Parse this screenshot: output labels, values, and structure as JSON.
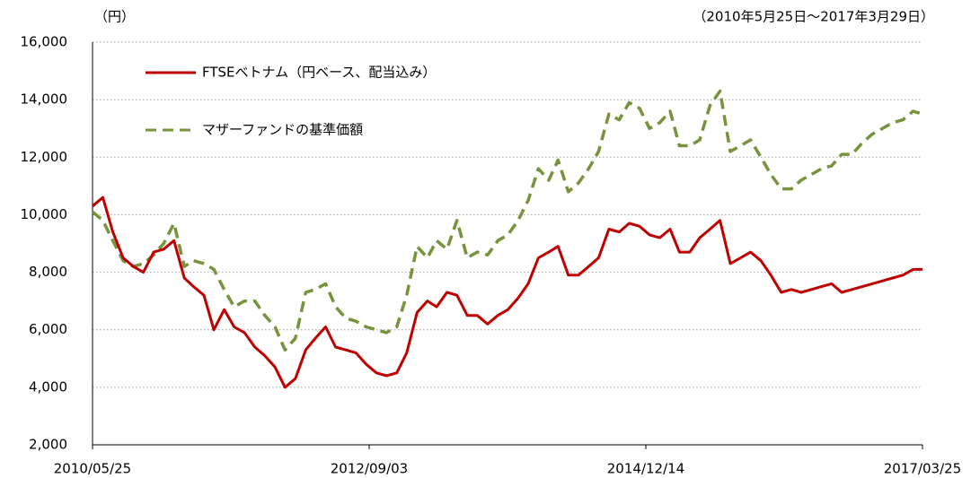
{
  "chart_data": {
    "type": "line",
    "title": "（円）",
    "subtitle": "（2010年5月25日～2017年3月29日）",
    "x": [
      "2010/05/25",
      "2010/06/25",
      "2010/07/25",
      "2010/08/25",
      "2010/09/25",
      "2010/10/25",
      "2010/11/25",
      "2010/12/25",
      "2011/01/25",
      "2011/02/25",
      "2011/03/25",
      "2011/04/25",
      "2011/05/25",
      "2011/06/25",
      "2011/07/25",
      "2011/08/25",
      "2011/09/25",
      "2011/10/25",
      "2011/11/25",
      "2011/12/25",
      "2012/01/25",
      "2012/02/25",
      "2012/03/25",
      "2012/04/25",
      "2012/05/25",
      "2012/06/25",
      "2012/07/25",
      "2012/08/25",
      "2012/09/25",
      "2012/10/25",
      "2012/11/25",
      "2012/12/25",
      "2013/01/25",
      "2013/02/25",
      "2013/03/25",
      "2013/04/25",
      "2013/05/25",
      "2013/06/25",
      "2013/07/25",
      "2013/08/25",
      "2013/09/25",
      "2013/10/25",
      "2013/11/25",
      "2013/12/25",
      "2014/01/25",
      "2014/02/25",
      "2014/03/25",
      "2014/04/25",
      "2014/05/25",
      "2014/06/25",
      "2014/07/25",
      "2014/08/25",
      "2014/09/25",
      "2014/10/25",
      "2014/11/25",
      "2014/12/25",
      "2015/01/25",
      "2015/02/25",
      "2015/03/25",
      "2015/04/25",
      "2015/05/25",
      "2015/06/25",
      "2015/07/25",
      "2015/08/25",
      "2015/09/25",
      "2015/10/25",
      "2015/11/25",
      "2015/12/25",
      "2016/01/25",
      "2016/02/25",
      "2016/03/25",
      "2016/04/25",
      "2016/05/25",
      "2016/06/25",
      "2016/07/25",
      "2016/08/25",
      "2016/09/25",
      "2016/10/25",
      "2016/11/25",
      "2016/12/25",
      "2017/01/25",
      "2017/02/25",
      "2017/03/25"
    ],
    "series": [
      {
        "name": "FTSEベトナム（円ベース、配当込み）",
        "color": "#c00000",
        "dash": false,
        "values": [
          10300,
          10600,
          9400,
          8500,
          8200,
          8000,
          8700,
          8800,
          9100,
          7800,
          7500,
          7200,
          6000,
          6700,
          6100,
          5900,
          5400,
          5100,
          4700,
          4000,
          4300,
          5300,
          5700,
          6100,
          5400,
          5300,
          5200,
          4800,
          4500,
          4400,
          4500,
          5200,
          6600,
          7000,
          6800,
          7300,
          7200,
          6500,
          6500,
          6200,
          6500,
          6700,
          7100,
          7600,
          8500,
          8700,
          8900,
          7900,
          7900,
          8200,
          8500,
          9500,
          9400,
          9700,
          9600,
          9300,
          9200,
          9500,
          8700,
          8700,
          9200,
          9500,
          9800,
          8300,
          8500,
          8700,
          8400,
          7900,
          7300,
          7400,
          7300,
          7400,
          7500,
          7600,
          7300,
          7400,
          7500,
          7600,
          7700,
          7800,
          7900,
          8100,
          8100
        ]
      },
      {
        "name": "マザーファンドの基準価額",
        "color": "#77933c",
        "dash": true,
        "values": [
          10100,
          9800,
          9100,
          8400,
          8200,
          8300,
          8600,
          9000,
          9700,
          8200,
          8400,
          8300,
          8100,
          7400,
          6800,
          7000,
          7000,
          6500,
          6100,
          5300,
          5700,
          7300,
          7400,
          7600,
          6800,
          6400,
          6300,
          6100,
          6000,
          5900,
          6100,
          7200,
          8900,
          8500,
          9100,
          8800,
          9800,
          8500,
          8700,
          8600,
          9100,
          9300,
          9800,
          10500,
          11600,
          11200,
          11900,
          10800,
          11100,
          11600,
          12200,
          13500,
          13300,
          13900,
          13700,
          13000,
          13200,
          13600,
          12400,
          12400,
          12600,
          13800,
          14300,
          12200,
          12400,
          12600,
          12000,
          11400,
          10900,
          10900,
          11200,
          11400,
          11600,
          11700,
          12100,
          12100,
          12500,
          12800,
          13000,
          13200,
          13300,
          13600,
          13500
        ]
      }
    ],
    "xlim": [
      "2010/05/25",
      "2017/03/25"
    ],
    "xticks": [
      "2010/05/25",
      "2012/09/03",
      "2014/12/14",
      "2017/03/25"
    ],
    "ylim": [
      2000,
      16000
    ],
    "yticks": [
      {
        "value": 2000,
        "label": "2,000"
      },
      {
        "value": 4000,
        "label": "4,000"
      },
      {
        "value": 6000,
        "label": "6,000"
      },
      {
        "value": 8000,
        "label": "8,000"
      },
      {
        "value": 10000,
        "label": "10,000"
      },
      {
        "value": 12000,
        "label": "12,000"
      },
      {
        "value": 14000,
        "label": "14,000"
      },
      {
        "value": 16000,
        "label": "16,000"
      }
    ],
    "grid": true,
    "legend": "upper left"
  }
}
